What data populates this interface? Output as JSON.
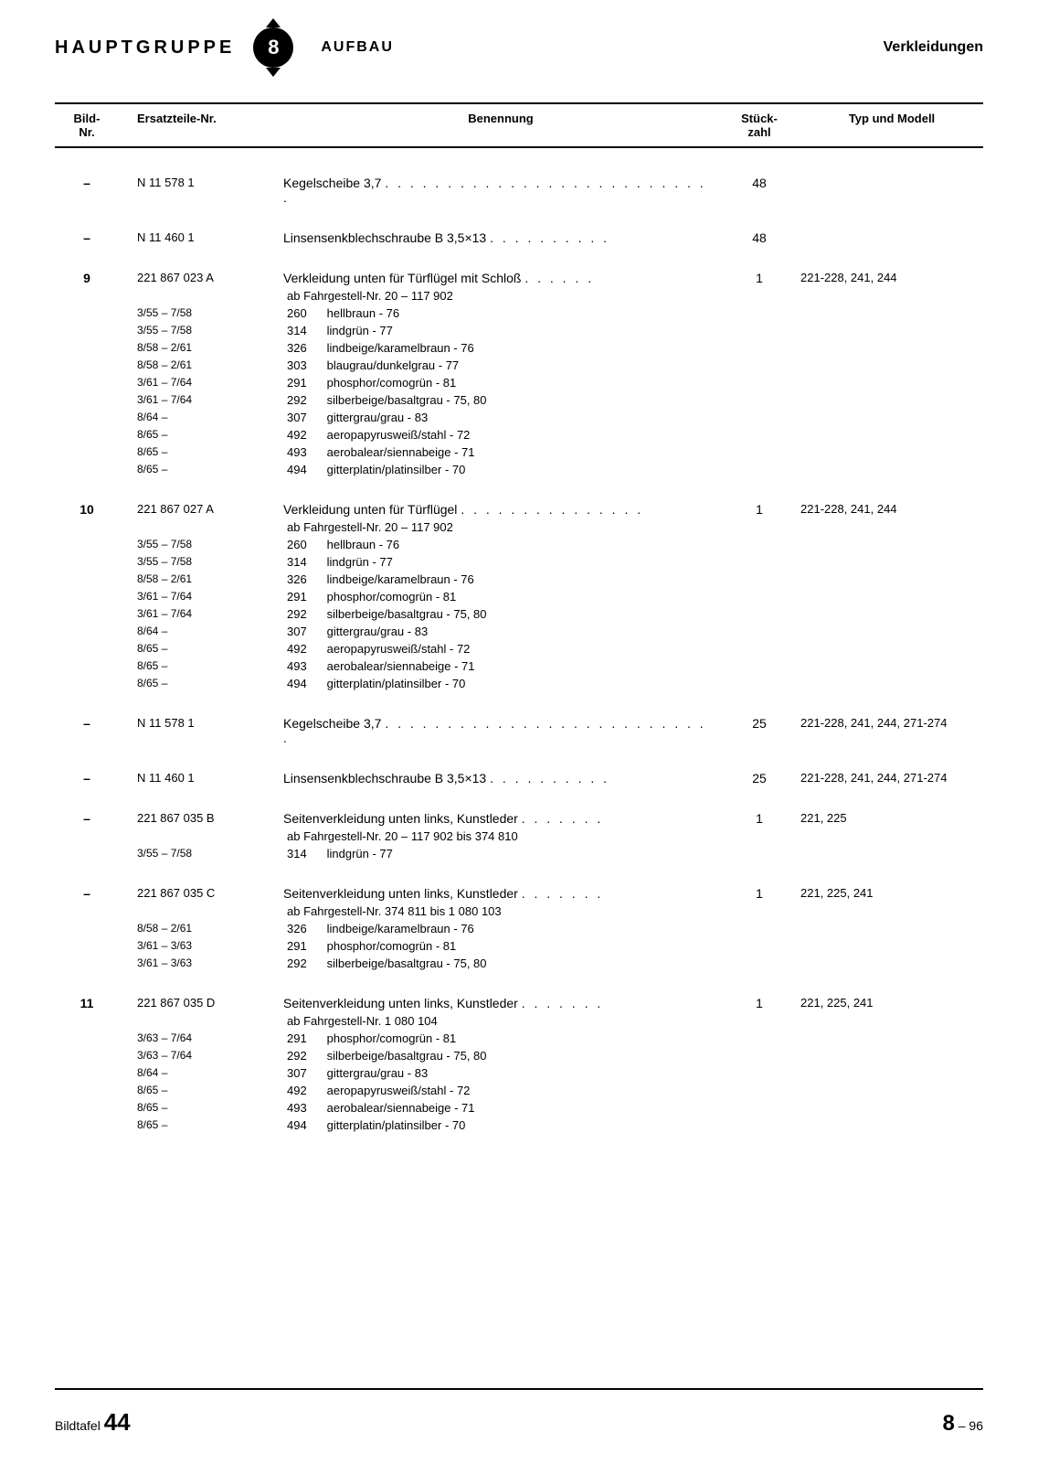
{
  "header": {
    "hauptgruppe": "HAUPTGRUPPE",
    "badge": "8",
    "aufbau": "AUFBAU",
    "verkleidungen": "Verkleidungen"
  },
  "columns": {
    "bild": "Bild-\nNr.",
    "ersatz": "Ersatzteile-Nr.",
    "benennung": "Benennung",
    "stuck": "Stück-\nzahl",
    "typ": "Typ und Modell"
  },
  "groups": [
    {
      "main": {
        "bild": "–",
        "ersatz": "N 11 578 1",
        "benennung": "Kegelscheibe  3,7",
        "dots": ". . . . . . . . . . . . . . . . . . . . . . . . . . .",
        "stuck": "48",
        "typ": ""
      },
      "subs": []
    },
    {
      "main": {
        "bild": "–",
        "ersatz": "N 11 460 1",
        "benennung": "Linsensenkblechschraube  B  3,5×13",
        "dots": ". . . . . . . . . .",
        "stuck": "48",
        "typ": ""
      },
      "subs": []
    },
    {
      "main": {
        "bild": "9",
        "ersatz": "221 867 023 A",
        "benennung": "Verkleidung unten für Türflügel mit Schloß",
        "dots": ". . . . . .",
        "stuck": "1",
        "typ": "221-228, 241, 244"
      },
      "note": "ab Fahrgestell-Nr. 20 – 117 902",
      "subs": [
        {
          "ersatz": "3/55 –  7/58",
          "code": "260",
          "text": "hellbraun - 76"
        },
        {
          "ersatz": "3/55 –  7/58",
          "code": "314",
          "text": "lindgrün - 77"
        },
        {
          "ersatz": "8/58 –  2/61",
          "code": "326",
          "text": "lindbeige/karamelbraun - 76"
        },
        {
          "ersatz": "8/58 –  2/61",
          "code": "303",
          "text": "blaugrau/dunkelgrau - 77"
        },
        {
          "ersatz": "3/61 –  7/64",
          "code": "291",
          "text": "phosphor/comogrün - 81"
        },
        {
          "ersatz": "3/61 –  7/64",
          "code": "292",
          "text": "silberbeige/basaltgrau - 75, 80"
        },
        {
          "ersatz": "8/64 –",
          "code": "307",
          "text": "gittergrau/grau - 83"
        },
        {
          "ersatz": "8/65 –",
          "code": "492",
          "text": "aeropapyrusweiß/stahl - 72"
        },
        {
          "ersatz": "8/65 –",
          "code": "493",
          "text": "aerobalear/siennabeige - 71"
        },
        {
          "ersatz": "8/65 –",
          "code": "494",
          "text": "gitterplatin/platinsilber - 70"
        }
      ]
    },
    {
      "main": {
        "bild": "10",
        "ersatz": "221 867 027 A",
        "benennung": "Verkleidung unten für Türflügel",
        "dots": ". . . . . . . . . . . . . . .",
        "stuck": "1",
        "typ": "221-228, 241, 244"
      },
      "note": "ab Fahrgestell-Nr. 20 – 117 902",
      "subs": [
        {
          "ersatz": "3/55 –  7/58",
          "code": "260",
          "text": "hellbraun - 76"
        },
        {
          "ersatz": "3/55 –  7/58",
          "code": "314",
          "text": "lindgrün - 77"
        },
        {
          "ersatz": "8/58 –  2/61",
          "code": "326",
          "text": "lindbeige/karamelbraun - 76"
        },
        {
          "ersatz": "3/61 –  7/64",
          "code": "291",
          "text": "phosphor/comogrün - 81"
        },
        {
          "ersatz": "3/61 –  7/64",
          "code": "292",
          "text": "silberbeige/basaltgrau - 75, 80"
        },
        {
          "ersatz": "8/64 –",
          "code": "307",
          "text": "gittergrau/grau - 83"
        },
        {
          "ersatz": "8/65 –",
          "code": "492",
          "text": "aeropapyrusweiß/stahl - 72"
        },
        {
          "ersatz": "8/65 –",
          "code": "493",
          "text": "aerobalear/siennabeige - 71"
        },
        {
          "ersatz": "8/65 –",
          "code": "494",
          "text": "gitterplatin/platinsilber - 70"
        }
      ]
    },
    {
      "main": {
        "bild": "–",
        "ersatz": "N 11 578 1",
        "benennung": "Kegelscheibe  3,7",
        "dots": ". . . . . . . . . . . . . . . . . . . . . . . . . . .",
        "stuck": "25",
        "typ": "221-228, 241, 244, 271-274"
      },
      "subs": []
    },
    {
      "main": {
        "bild": "–",
        "ersatz": "N 11 460 1",
        "benennung": "Linsensenkblechschraube  B  3,5×13",
        "dots": ". . . . . . . . . .",
        "stuck": "25",
        "typ": "221-228, 241, 244, 271-274"
      },
      "subs": []
    },
    {
      "main": {
        "bild": "–",
        "ersatz": "221 867 035 B",
        "benennung": "Seitenverkleidung unten links, Kunstleder",
        "dots": ". . . . . . .",
        "stuck": "1",
        "typ": "221, 225"
      },
      "note": "ab Fahrgestell-Nr. 20 – 117 902 bis 374 810",
      "subs": [
        {
          "ersatz": "3/55 –  7/58",
          "code": "314",
          "text": "lindgrün - 77"
        }
      ]
    },
    {
      "main": {
        "bild": "–",
        "ersatz": "221 867 035 C",
        "benennung": "Seitenverkleidung unten links, Kunstleder",
        "dots": ". . . . . . .",
        "stuck": "1",
        "typ": "221, 225, 241"
      },
      "note": "ab Fahrgestell-Nr. 374 811 bis 1 080 103",
      "subs": [
        {
          "ersatz": "8/58 –  2/61",
          "code": "326",
          "text": "lindbeige/karamelbraun - 76"
        },
        {
          "ersatz": "3/61 –  3/63",
          "code": "291",
          "text": "phosphor/comogrün - 81"
        },
        {
          "ersatz": "3/61 –  3/63",
          "code": "292",
          "text": "silberbeige/basaltgrau - 75, 80"
        }
      ]
    },
    {
      "main": {
        "bild": "11",
        "ersatz": "221 867 035 D",
        "benennung": "Seitenverkleidung unten links, Kunstleder",
        "dots": ". . . . . . .",
        "stuck": "1",
        "typ": "221, 225, 241"
      },
      "note": "ab Fahrgestell-Nr. 1 080 104",
      "subs": [
        {
          "ersatz": "3/63 –  7/64",
          "code": "291",
          "text": "phosphor/comogrün - 81"
        },
        {
          "ersatz": "3/63 –  7/64",
          "code": "292",
          "text": "silberbeige/basaltgrau - 75, 80"
        },
        {
          "ersatz": "8/64 –",
          "code": "307",
          "text": "gittergrau/grau - 83"
        },
        {
          "ersatz": "8/65 –",
          "code": "492",
          "text": "aeropapyrusweiß/stahl - 72"
        },
        {
          "ersatz": "8/65 –",
          "code": "493",
          "text": "aerobalear/siennabeige - 71"
        },
        {
          "ersatz": "8/65 –",
          "code": "494",
          "text": "gitterplatin/platinsilber - 70"
        }
      ]
    }
  ],
  "footer": {
    "left_label": "Bildtafel",
    "left_num": "44",
    "right_big": "8",
    "right_suffix": "– 96"
  }
}
